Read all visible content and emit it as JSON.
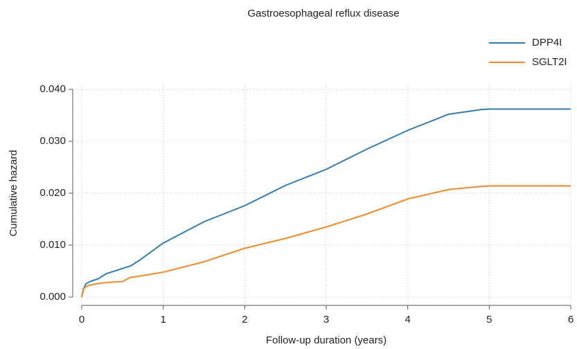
{
  "chart_data": {
    "type": "line",
    "title": "Gastroesophageal reflux disease",
    "xlabel": "Follow-up duration (years)",
    "ylabel": "Cumulative hazard",
    "x": [
      0,
      0.02,
      0.05,
      0.1,
      0.2,
      0.3,
      0.5,
      0.6,
      0.7,
      1,
      1.5,
      2,
      2.5,
      3,
      3.5,
      4,
      4.5,
      4.9,
      5,
      6
    ],
    "series": [
      {
        "name": "DPP4I",
        "color": "#2f7bb6",
        "values": [
          0,
          0.0015,
          0.0025,
          0.003,
          0.0035,
          0.0045,
          0.0055,
          0.006,
          0.007,
          0.0104,
          0.0145,
          0.0176,
          0.0215,
          0.0246,
          0.0285,
          0.0321,
          0.0352,
          0.0361,
          0.0362,
          0.0362
        ]
      },
      {
        "name": "SGLT2I",
        "color": "#f08a2c",
        "values": [
          0,
          0.0015,
          0.002,
          0.0023,
          0.0026,
          0.0028,
          0.003,
          0.0038,
          0.004,
          0.0048,
          0.0068,
          0.0094,
          0.0113,
          0.0135,
          0.016,
          0.0189,
          0.0207,
          0.0213,
          0.0214,
          0.0214
        ]
      }
    ],
    "xlim": [
      0,
      6
    ],
    "xticks": [
      0,
      1,
      2,
      3,
      4,
      5,
      6
    ],
    "ylim": [
      0,
      0.04
    ],
    "yticks": [
      {
        "value": 0,
        "label": "0.000"
      },
      {
        "value": 0.01,
        "label": "0.010"
      },
      {
        "value": 0.02,
        "label": "0.020"
      },
      {
        "value": 0.03,
        "label": "0.030"
      },
      {
        "value": 0.04,
        "label": "0.040"
      }
    ],
    "grid": true,
    "legend": "top-right"
  }
}
